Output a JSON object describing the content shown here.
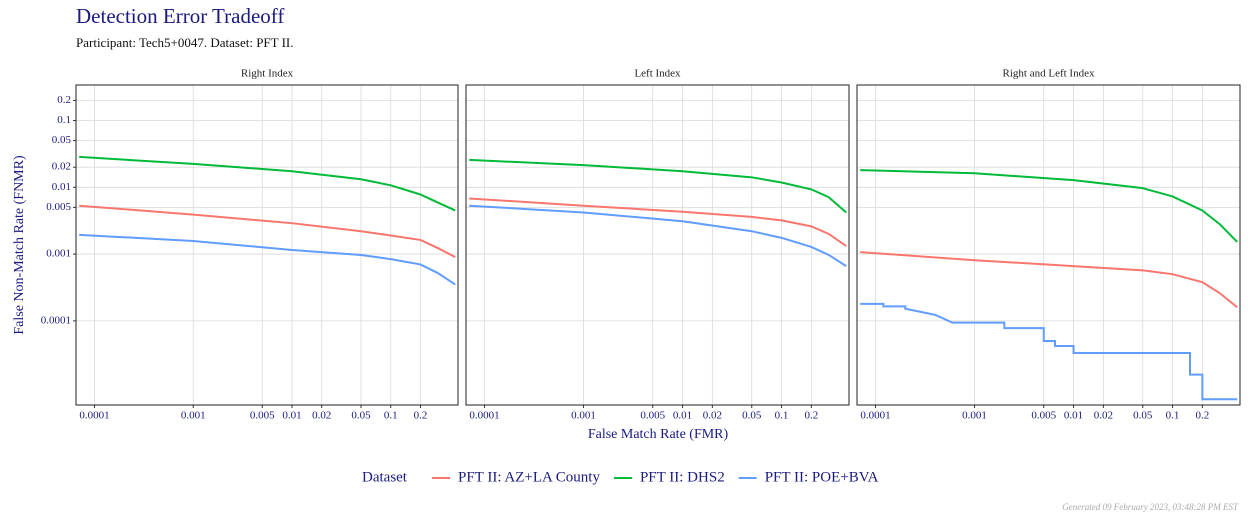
{
  "title": "Detection Error Tradeoff",
  "subtitle": "Participant: Tech5+0047. Dataset: PFT II.",
  "x_label": "False Match Rate (FMR)",
  "y_label": "False Non-Match Rate (FNMR)",
  "legend_title": "Dataset",
  "footer": "Generated 09 February 2023, 03:48:28 PM EST",
  "chart_data": [
    {
      "type": "line",
      "title": "Right Index",
      "log_x": true,
      "log_y": true,
      "grid": true,
      "xlim": [
        6.5e-05,
        0.48
      ],
      "ylim": [
        5.5e-06,
        0.34
      ],
      "xticks": [
        0.0001,
        0.001,
        0.005,
        0.01,
        0.02,
        0.05,
        0.1,
        0.2
      ],
      "yticks": [
        0.0001,
        0.001,
        0.005,
        0.01,
        0.02,
        0.05,
        0.1,
        0.2
      ],
      "series": [
        {
          "name": "PFT II: AZ+LA County",
          "color": "#F8766D",
          "x": [
            7e-05,
            0.001,
            0.01,
            0.05,
            0.1,
            0.2,
            0.3,
            0.45
          ],
          "values": [
            0.0053,
            0.0039,
            0.0029,
            0.0022,
            0.0019,
            0.00163,
            0.00123,
            0.0009
          ]
        },
        {
          "name": "PFT II: DHS2",
          "color": "#00BA38",
          "x": [
            7e-05,
            0.001,
            0.01,
            0.05,
            0.1,
            0.2,
            0.3,
            0.45
          ],
          "values": [
            0.0285,
            0.0224,
            0.0174,
            0.0132,
            0.0107,
            0.0078,
            0.0059,
            0.0045
          ]
        },
        {
          "name": "PFT II: POE+BVA",
          "color": "#619CFF",
          "x": [
            7e-05,
            0.001,
            0.01,
            0.05,
            0.1,
            0.2,
            0.3,
            0.45
          ],
          "values": [
            0.00194,
            0.00157,
            0.00115,
            0.00097,
            0.00084,
            0.0007,
            0.00052,
            0.00035
          ]
        }
      ]
    },
    {
      "type": "line",
      "title": "Left Index",
      "log_x": true,
      "log_y": true,
      "grid": true,
      "xlim": [
        6.5e-05,
        0.48
      ],
      "ylim": [
        5.5e-06,
        0.34
      ],
      "xticks": [
        0.0001,
        0.001,
        0.005,
        0.01,
        0.02,
        0.05,
        0.1,
        0.2
      ],
      "series": [
        {
          "name": "PFT II: AZ+LA County",
          "color": "#F8766D",
          "x": [
            7e-05,
            0.001,
            0.01,
            0.05,
            0.1,
            0.2,
            0.3,
            0.45
          ],
          "values": [
            0.0068,
            0.0053,
            0.0043,
            0.0036,
            0.0032,
            0.0026,
            0.002,
            0.00132
          ]
        },
        {
          "name": "PFT II: DHS2",
          "color": "#00BA38",
          "x": [
            7e-05,
            0.001,
            0.01,
            0.05,
            0.1,
            0.2,
            0.3,
            0.45
          ],
          "values": [
            0.0257,
            0.0215,
            0.0174,
            0.0141,
            0.0118,
            0.0093,
            0.0071,
            0.0042
          ]
        },
        {
          "name": "PFT II: POE+BVA",
          "color": "#619CFF",
          "x": [
            7e-05,
            0.001,
            0.01,
            0.05,
            0.1,
            0.2,
            0.3,
            0.45
          ],
          "values": [
            0.0053,
            0.0042,
            0.0031,
            0.0022,
            0.00175,
            0.00128,
            0.00097,
            0.00066
          ]
        }
      ]
    },
    {
      "type": "line",
      "title": "Right and Left Index",
      "log_x": true,
      "log_y": true,
      "grid": true,
      "xlim": [
        6.5e-05,
        0.48
      ],
      "ylim": [
        5.5e-06,
        0.34
      ],
      "xticks": [
        0.0001,
        0.001,
        0.005,
        0.01,
        0.02,
        0.05,
        0.1,
        0.2
      ],
      "series": [
        {
          "name": "PFT II: AZ+LA County",
          "color": "#F8766D",
          "x": [
            7e-05,
            0.001,
            0.01,
            0.05,
            0.1,
            0.2,
            0.3,
            0.45
          ],
          "values": [
            0.00107,
            0.00081,
            0.00066,
            0.00057,
            0.0005,
            0.00038,
            0.00026,
            0.00016
          ]
        },
        {
          "name": "PFT II: DHS2",
          "color": "#00BA38",
          "x": [
            7e-05,
            0.001,
            0.01,
            0.05,
            0.1,
            0.2,
            0.3,
            0.45
          ],
          "values": [
            0.0181,
            0.0162,
            0.0128,
            0.0097,
            0.0073,
            0.0045,
            0.0028,
            0.00152
          ]
        },
        {
          "name": "PFT II: POE+BVA",
          "color": "#619CFF",
          "x": [
            7e-05,
            0.00012,
            0.00012,
            0.0002,
            0.0002,
            0.0004,
            0.0006,
            0.0006,
            0.002,
            0.002,
            0.005,
            0.005,
            0.0065,
            0.0065,
            0.01,
            0.01,
            0.15,
            0.15,
            0.2,
            0.2,
            0.45
          ],
          "values": [
            0.00018,
            0.00018,
            0.000165,
            0.000165,
            0.000152,
            0.000123,
            9.4e-05,
            9.4e-05,
            9.4e-05,
            7.8e-05,
            7.8e-05,
            5e-05,
            5e-05,
            4.2e-05,
            4.2e-05,
            3.3e-05,
            3.3e-05,
            1.57e-05,
            1.57e-05,
            6.7e-06,
            6.7e-06
          ]
        }
      ]
    }
  ]
}
